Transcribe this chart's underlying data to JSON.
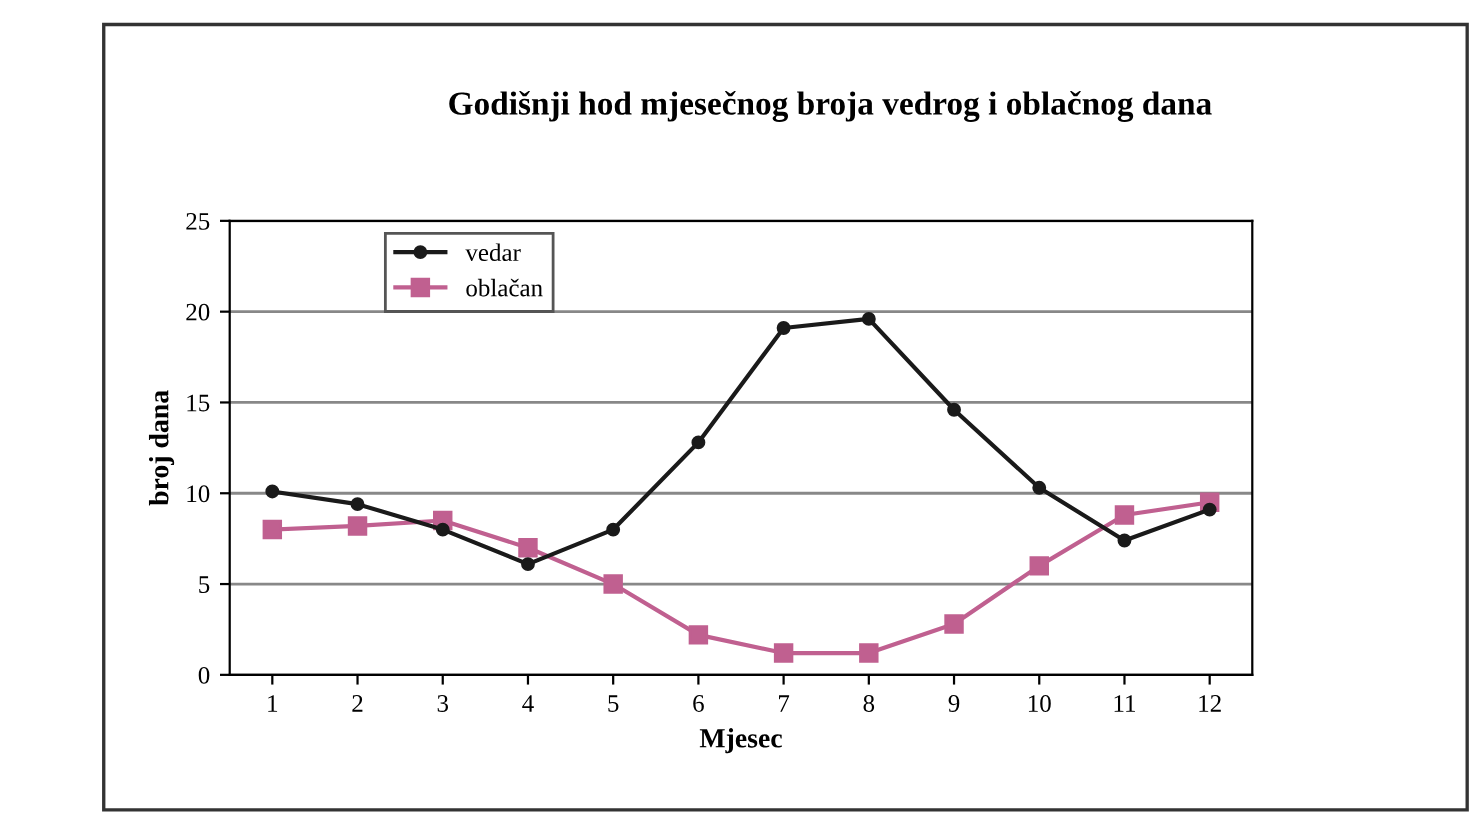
{
  "chart_data": {
    "type": "line",
    "title": "Godišnji hod mjesečnog broja vedrog i oblačnog dana",
    "xlabel": "Mjesec",
    "ylabel": "broj dana",
    "categories": [
      "1",
      "2",
      "3",
      "4",
      "5",
      "6",
      "7",
      "8",
      "9",
      "10",
      "11",
      "12"
    ],
    "series": [
      {
        "name": "vedar",
        "color": "#1a1a1a",
        "marker": "circle",
        "values": [
          10.1,
          9.4,
          8.0,
          6.1,
          8.0,
          12.8,
          19.1,
          19.6,
          14.6,
          10.3,
          7.4,
          9.1
        ]
      },
      {
        "name": "oblačan",
        "color": "#c06090",
        "marker": "square",
        "values": [
          8.0,
          8.2,
          8.5,
          7.0,
          5.0,
          2.2,
          1.2,
          1.2,
          2.8,
          6.0,
          8.8,
          9.5
        ]
      }
    ],
    "ylim": [
      0,
      25
    ],
    "yticks": [
      0,
      5,
      10,
      15,
      20,
      25
    ],
    "grid": "y",
    "legend": "top left"
  }
}
